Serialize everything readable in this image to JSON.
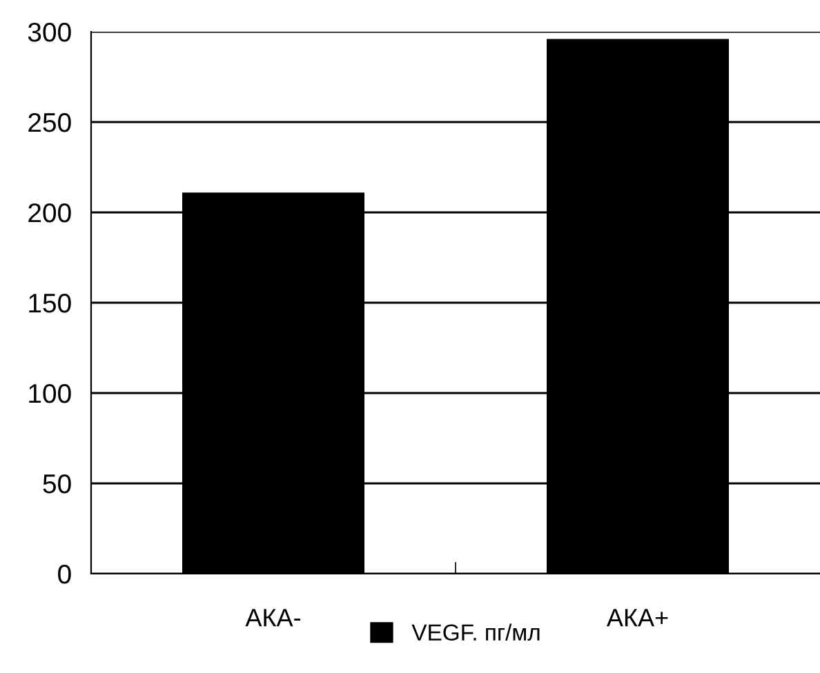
{
  "chart_data": {
    "type": "bar",
    "categories": [
      "АКА-",
      "АКА+"
    ],
    "series": [
      {
        "name": "VEGF. пг/мл",
        "color": "#000000",
        "values": [
          211,
          296
        ]
      }
    ],
    "ylim": [
      0,
      300
    ],
    "yticks": [
      0,
      50,
      100,
      150,
      200,
      250,
      300
    ],
    "grid": "y",
    "legend": "bottom"
  }
}
